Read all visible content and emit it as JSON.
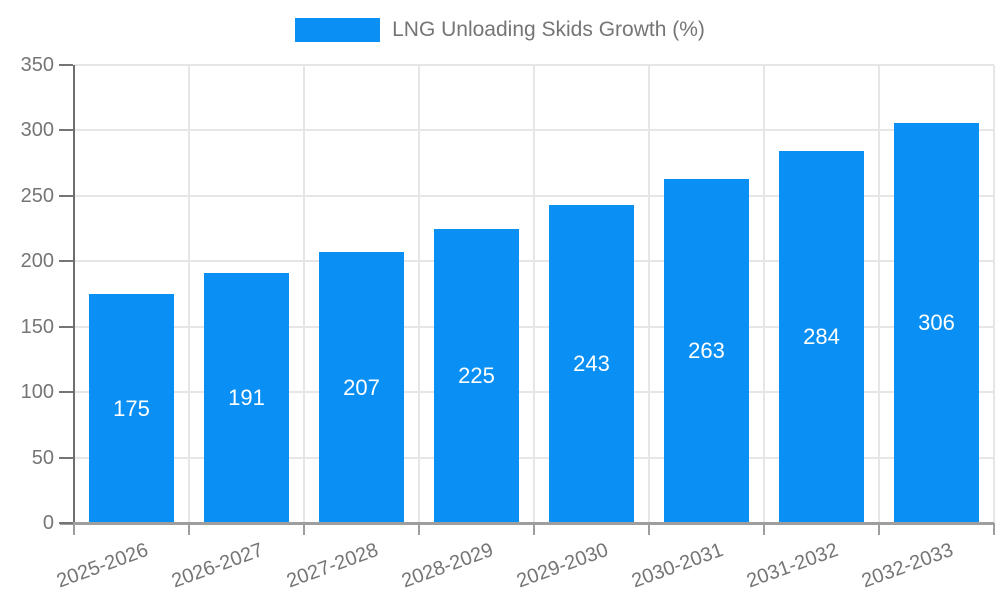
{
  "chart_data": {
    "type": "bar",
    "legend_label": "LNG Unloading Skids Growth (%)",
    "legend_position": "top",
    "categories": [
      "2025-2026",
      "2026-2027",
      "2027-2028",
      "2028-2029",
      "2029-2030",
      "2030-2031",
      "2031-2032",
      "2032-2033"
    ],
    "values": [
      175,
      191,
      207,
      225,
      243,
      263,
      284,
      306
    ],
    "value_labels": [
      "175",
      "191",
      "207",
      "225",
      "243",
      "263",
      "284",
      "306"
    ],
    "xlabel": "",
    "ylabel": "",
    "ylim": [
      0,
      350
    ],
    "yticks": [
      0,
      50,
      100,
      150,
      200,
      250,
      300,
      350
    ],
    "grid": true,
    "bar_color": "#0a90f5",
    "value_label_color": "#ffffff",
    "axis_text_color": "#757575",
    "gridline_color": "#e6e6e6"
  }
}
